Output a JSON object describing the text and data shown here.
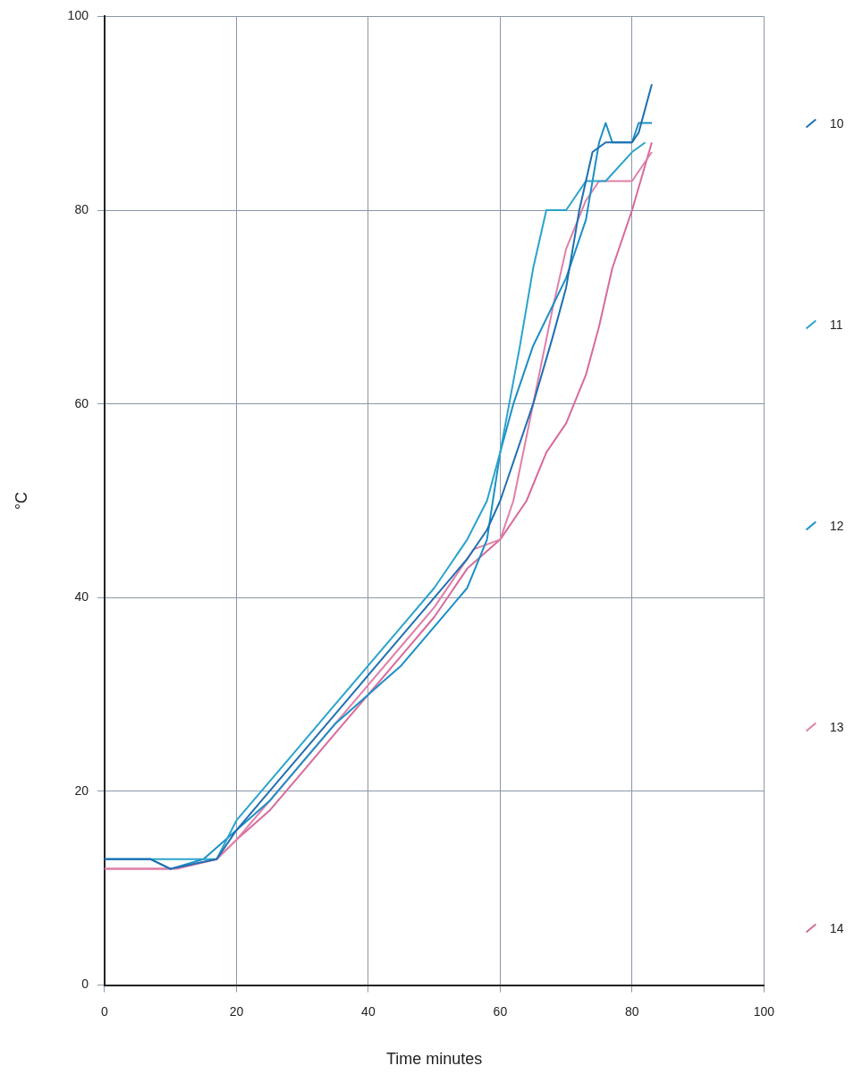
{
  "chart_data": {
    "type": "line",
    "xlabel": "Time minutes",
    "ylabel": "°C",
    "xlim": [
      0,
      100
    ],
    "xticks": [
      0,
      20,
      40,
      60,
      80,
      100
    ],
    "ylim": [
      0,
      100
    ],
    "yticks": [
      0,
      20,
      40,
      60,
      80,
      100
    ],
    "grid": true,
    "legend": "right",
    "marker": "none",
    "line_style": "solid",
    "series": [
      {
        "name": "10",
        "color": "#1f6fb2",
        "x": [
          0,
          7,
          10,
          17,
          20,
          25,
          30,
          35,
          40,
          45,
          50,
          55,
          58,
          60,
          63,
          65,
          68,
          70,
          72,
          74,
          76,
          80,
          81,
          83
        ],
        "values": [
          13,
          13,
          12,
          13,
          16,
          20,
          24,
          28,
          32,
          36,
          40,
          44,
          47,
          50,
          56,
          60,
          67,
          72,
          80,
          86,
          87,
          87,
          88,
          93
        ]
      },
      {
        "name": "11",
        "color": "#2aa3cc",
        "x": [
          0,
          6,
          10,
          17,
          20,
          25,
          30,
          35,
          40,
          45,
          50,
          55,
          58,
          60,
          63,
          65,
          67,
          70,
          73,
          76,
          80,
          82
        ],
        "values": [
          13,
          13,
          13,
          13,
          17,
          21,
          25,
          29,
          33,
          37,
          41,
          46,
          50,
          55,
          66,
          74,
          80,
          80,
          83,
          83,
          86,
          87
        ]
      },
      {
        "name": "12",
        "color": "#1a8fc6",
        "x": [
          0,
          7,
          10,
          15,
          20,
          25,
          30,
          35,
          40,
          45,
          50,
          55,
          58,
          60,
          62,
          65,
          70,
          73,
          75,
          76,
          77,
          80,
          81,
          83
        ],
        "values": [
          13,
          13,
          12,
          13,
          16,
          19,
          23,
          27,
          30,
          33,
          37,
          41,
          46,
          55,
          60,
          66,
          73,
          79,
          87,
          89,
          87,
          87,
          89,
          89
        ]
      },
      {
        "name": "13",
        "color": "#e07fa8",
        "x": [
          0,
          7,
          11,
          17,
          20,
          25,
          30,
          35,
          40,
          45,
          50,
          56,
          60,
          62,
          65,
          68,
          70,
          73,
          75,
          80,
          83
        ],
        "values": [
          12,
          12,
          12,
          13,
          15,
          19,
          23,
          27,
          31,
          35,
          39,
          45,
          46,
          50,
          60,
          70,
          76,
          81,
          83,
          83,
          86
        ]
      },
      {
        "name": "14",
        "color": "#d86a9a",
        "x": [
          0,
          10,
          17,
          20,
          25,
          30,
          35,
          40,
          45,
          50,
          55,
          60,
          64,
          67,
          70,
          73,
          75,
          77,
          80,
          83
        ],
        "values": [
          12,
          12,
          13,
          15,
          18,
          22,
          26,
          30,
          34,
          38,
          43,
          46,
          50,
          55,
          58,
          63,
          68,
          74,
          80,
          87
        ]
      }
    ]
  }
}
